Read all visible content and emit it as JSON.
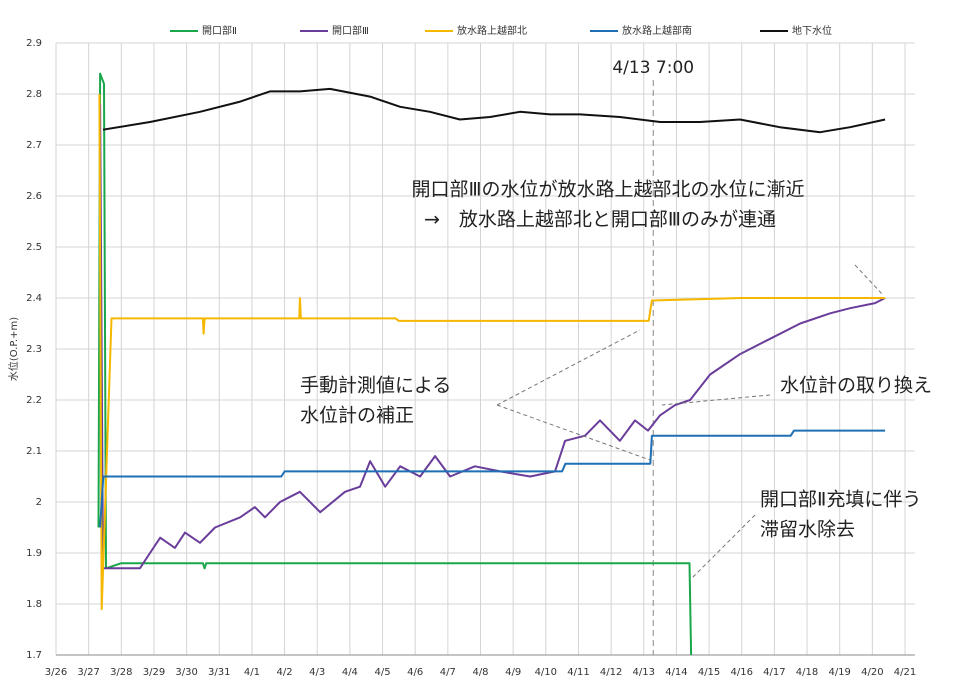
{
  "chart_data": {
    "type": "line",
    "ylabel": "水位(O.P.+m)",
    "xlim": [
      0,
      26.3
    ],
    "xticks": [
      {
        "value": 0,
        "label": "3/26"
      },
      {
        "value": 1,
        "label": "3/27"
      },
      {
        "value": 2,
        "label": "3/28"
      },
      {
        "value": 3,
        "label": "3/29"
      },
      {
        "value": 4,
        "label": "3/30"
      },
      {
        "value": 5,
        "label": "3/31"
      },
      {
        "value": 6,
        "label": "4/1"
      },
      {
        "value": 7,
        "label": "4/2"
      },
      {
        "value": 8,
        "label": "4/3"
      },
      {
        "value": 9,
        "label": "4/4"
      },
      {
        "value": 10,
        "label": "4/5"
      },
      {
        "value": 11,
        "label": "4/6"
      },
      {
        "value": 12,
        "label": "4/7"
      },
      {
        "value": 13,
        "label": "4/8"
      },
      {
        "value": 14,
        "label": "4/9"
      },
      {
        "value": 15,
        "label": "4/10"
      },
      {
        "value": 16,
        "label": "4/11"
      },
      {
        "value": 17,
        "label": "4/12"
      },
      {
        "value": 18,
        "label": "4/13"
      },
      {
        "value": 19,
        "label": "4/14"
      },
      {
        "value": 20,
        "label": "4/15"
      },
      {
        "value": 21,
        "label": "4/16"
      },
      {
        "value": 22,
        "label": "4/17"
      },
      {
        "value": 23,
        "label": "4/18"
      },
      {
        "value": 24,
        "label": "4/19"
      },
      {
        "value": 25,
        "label": "4/20"
      },
      {
        "value": 26,
        "label": "4/21"
      }
    ],
    "ylim": [
      1.7,
      2.9
    ],
    "yticks": [
      1.7,
      1.8,
      1.9,
      2,
      2.1,
      2.2,
      2.3,
      2.4,
      2.5,
      2.6,
      2.7,
      2.8,
      2.9
    ],
    "grid": true,
    "legend": "top",
    "vline": {
      "x": 18.29,
      "label": "4/13 7:00"
    },
    "annotations": [
      "開口部Ⅲの水位が放水路上越部北の水位に漸近",
      "→　放水路上越部北と開口部Ⅲのみが連通",
      "手動計測値による",
      "水位計の補正",
      "水位計の取り換え",
      "開口部Ⅱ充填に伴う",
      "滞留水除去"
    ],
    "series": [
      {
        "name": "開口部Ⅱ",
        "color": "#1aa64a",
        "x": [
          1.3,
          1.35,
          1.47,
          1.53,
          2,
          4.5,
          4.55,
          4.6,
          19.4,
          19.45
        ],
        "values": [
          1.95,
          2.84,
          2.82,
          1.87,
          1.88,
          1.88,
          1.87,
          1.88,
          1.88,
          1.7
        ]
      },
      {
        "name": "開口部Ⅲ",
        "color": "#6a3d9a",
        "x": [
          1.35,
          1.44,
          2.57,
          2.88,
          3.19,
          3.64,
          3.95,
          4.41,
          4.87,
          5.64,
          6.09,
          6.4,
          6.86,
          7.47,
          8.09,
          8.85,
          9.31,
          9.62,
          10.08,
          10.54,
          11.15,
          11.61,
          12.07,
          12.83,
          13.6,
          14.52,
          15.28,
          15.59,
          16.2,
          16.66,
          17.27,
          17.73,
          18.13,
          18.5,
          18.96,
          19.42,
          20.03,
          20.95,
          21.87,
          22.79,
          23.71,
          24.32,
          25.08,
          25.39
        ],
        "values": [
          2.78,
          1.87,
          1.87,
          1.9,
          1.93,
          1.91,
          1.94,
          1.92,
          1.95,
          1.97,
          1.99,
          1.97,
          2.0,
          2.02,
          1.98,
          2.02,
          2.03,
          2.08,
          2.03,
          2.07,
          2.05,
          2.09,
          2.05,
          2.07,
          2.06,
          2.05,
          2.06,
          2.12,
          2.13,
          2.16,
          2.12,
          2.16,
          2.14,
          2.17,
          2.19,
          2.2,
          2.25,
          2.29,
          2.32,
          2.35,
          2.37,
          2.38,
          2.39,
          2.4
        ]
      },
      {
        "name": "放水路上越部北",
        "color": "#f5b700",
        "x": [
          1.33,
          1.4,
          1.7,
          4.5,
          4.52,
          4.55,
          7.45,
          7.47,
          7.5,
          10.4,
          10.5,
          18.15,
          18.25,
          21,
          25.39
        ],
        "values": [
          2.8,
          1.79,
          2.36,
          2.36,
          2.33,
          2.36,
          2.36,
          2.4,
          2.36,
          2.36,
          2.355,
          2.355,
          2.395,
          2.4,
          2.4
        ]
      },
      {
        "name": "放水路上越部南",
        "color": "#1f6fb4",
        "x": [
          1.35,
          1.45,
          6.9,
          7,
          15.5,
          15.6,
          18.2,
          18.25,
          22.5,
          22.6,
          25.39
        ],
        "values": [
          1.95,
          2.05,
          2.05,
          2.06,
          2.06,
          2.075,
          2.075,
          2.13,
          2.13,
          2.14,
          2.14
        ]
      },
      {
        "name": "地下水位",
        "color": "#111111",
        "x": [
          1.44,
          2.88,
          4.41,
          5.64,
          6.55,
          7.47,
          8.39,
          9.62,
          10.54,
          11.45,
          12.37,
          13.29,
          14.21,
          15.13,
          16.05,
          17.27,
          18.5,
          19.72,
          20.95,
          22.17,
          23.4,
          24.32,
          25.39
        ],
        "values": [
          2.73,
          2.745,
          2.765,
          2.785,
          2.805,
          2.805,
          2.81,
          2.795,
          2.775,
          2.765,
          2.75,
          2.755,
          2.765,
          2.76,
          2.76,
          2.755,
          2.745,
          2.745,
          2.75,
          2.735,
          2.725,
          2.735,
          2.75
        ]
      }
    ]
  }
}
